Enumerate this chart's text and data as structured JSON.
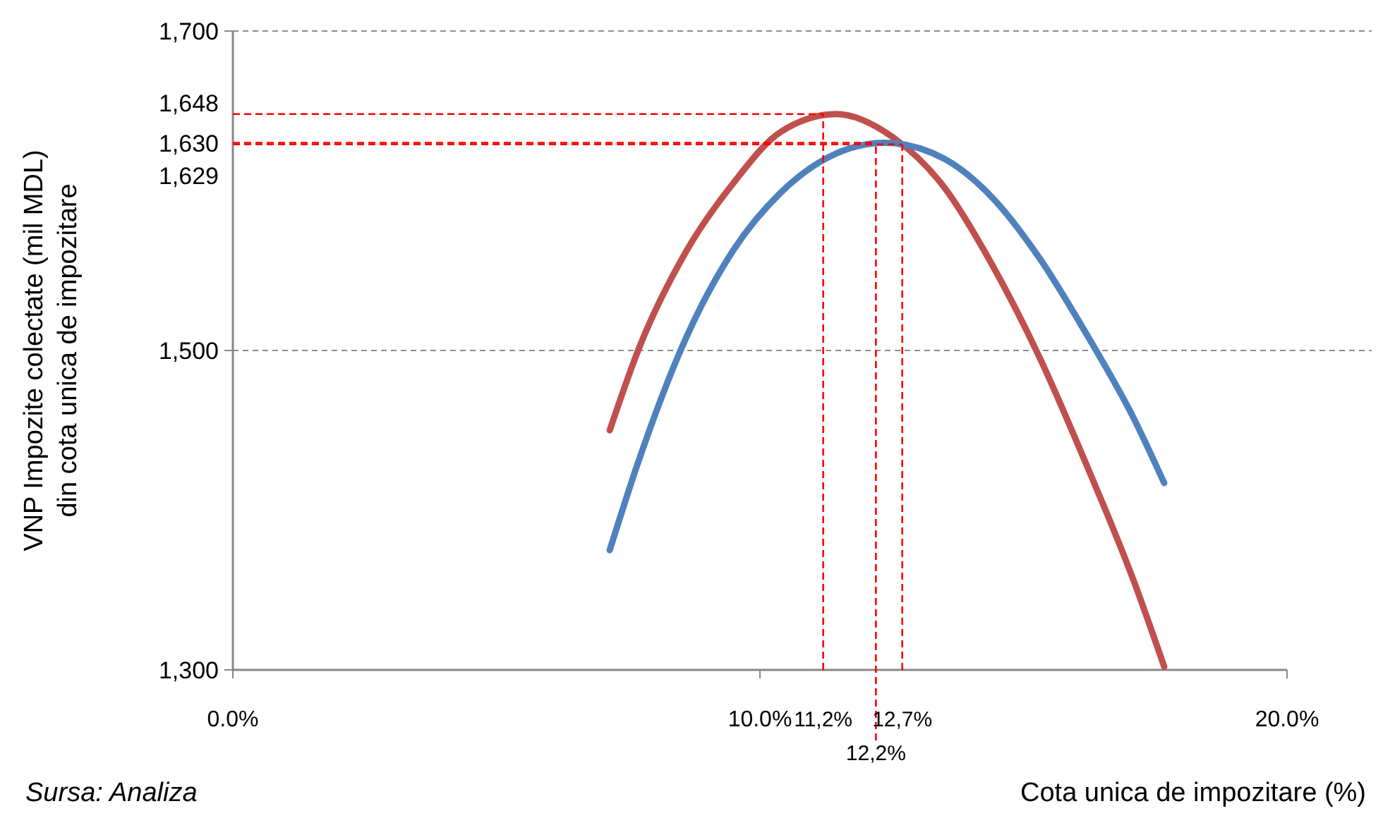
{
  "chart_data": {
    "type": "line",
    "xlabel": "Cota unica  de impozitare (%)",
    "ylabel": "VNP Impozite colectate (mil MDL)\ndin cota unica de impozitare",
    "xlim": [
      0,
      20
    ],
    "xticks": [
      {
        "value": 0,
        "label": "0.0%"
      },
      {
        "value": 10,
        "label": "10.0%"
      },
      {
        "value": 20,
        "label": "20.0%"
      }
    ],
    "ylim": [
      1300,
      1700
    ],
    "yticks": [
      {
        "value": 1300,
        "label": "1,300"
      },
      {
        "value": 1500,
        "label": "1,500"
      },
      {
        "value": 1700,
        "label": "1,700"
      }
    ],
    "grid": "y",
    "line_style": "solid",
    "series": [
      {
        "color": "#c0504d",
        "x": [
          7.15,
          7.7,
          8.6,
          9.5,
          10.4,
          11.45,
          12.5,
          13.5,
          14.4,
          15.3,
          16.2,
          17.1,
          17.67
        ],
        "values": [
          1450,
          1501,
          1562,
          1605,
          1637,
          1648,
          1634,
          1602,
          1554,
          1496,
          1428,
          1355,
          1302
        ]
      },
      {
        "color": "#4f81bd",
        "x": [
          7.15,
          7.7,
          8.6,
          9.5,
          10.4,
          11.3,
          12.37,
          13.5,
          14.4,
          15.3,
          16.2,
          17.1,
          17.67
        ],
        "values": [
          1375,
          1431,
          1508,
          1563,
          1599,
          1621,
          1630,
          1620,
          1596,
          1558,
          1510,
          1457,
          1417
        ]
      }
    ],
    "ref_lines": [
      {
        "axis": "y",
        "value": 1648,
        "label": "1,648",
        "color": "#ff0000",
        "line_style": "dashed"
      },
      {
        "axis": "y",
        "value": 1630,
        "label": "1,630",
        "color": "#ff0000",
        "line_style": "dashed"
      },
      {
        "axis": "y",
        "value": 1629,
        "label": "1,629",
        "color": "#ff0000",
        "line_style": "dashed"
      },
      {
        "axis": "x",
        "value": 11.2,
        "label": "11,2%",
        "color": "#ff0000",
        "line_style": "dashed"
      },
      {
        "axis": "x",
        "value": 12.2,
        "label": "12,2%",
        "color": "#ff0000",
        "line_style": "dashed"
      },
      {
        "axis": "x",
        "value": 12.7,
        "label": "12,7%",
        "color": "#ff0000",
        "line_style": "dashed"
      }
    ],
    "annotations": [
      "Sursa: Analiza"
    ]
  }
}
